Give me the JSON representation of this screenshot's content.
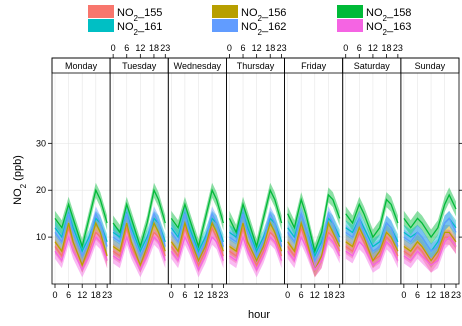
{
  "chart_data": {
    "type": "line",
    "ylabel": "NO2 (ppb)",
    "ylabel_parts": {
      "main": "NO",
      "sub": "2",
      "unit": " (ppb)"
    },
    "xlabel": "hour",
    "panels": [
      "Monday",
      "Tuesday",
      "Wednesday",
      "Thursday",
      "Friday",
      "Saturday",
      "Sunday"
    ],
    "x_ticks": [
      "0",
      "6",
      "12",
      "18",
      "23"
    ],
    "xlim": [
      0,
      23
    ],
    "y_ticks": [
      10,
      20,
      30
    ],
    "ylim": [
      0,
      45
    ],
    "grid": true,
    "legend_position": "top",
    "x": [
      0,
      3,
      6,
      8,
      12,
      15,
      18,
      20,
      23
    ],
    "series": [
      {
        "name": "NO2_155",
        "label_main": "NO",
        "label_sub": "2",
        "label_suffix": "_155",
        "color": "#f8766d",
        "values": [
          [
            8,
            6,
            12,
            9,
            4,
            7,
            11,
            10,
            5
          ],
          [
            7,
            6,
            12,
            8,
            4,
            7,
            11,
            10,
            6
          ],
          [
            8,
            6,
            12,
            9,
            4,
            7,
            12,
            10,
            6
          ],
          [
            7,
            6,
            12,
            8,
            4,
            7,
            11,
            10,
            6
          ],
          [
            8,
            6,
            12,
            9,
            3,
            5,
            11,
            10,
            7
          ],
          [
            8,
            7,
            11,
            9,
            5,
            6,
            10,
            9,
            6
          ],
          [
            7,
            6,
            8,
            7,
            4,
            6,
            10,
            10,
            8
          ]
        ]
      },
      {
        "name": "NO2_156",
        "label_main": "NO",
        "label_sub": "2",
        "label_suffix": "_156",
        "color": "#b79f00",
        "values": [
          [
            9,
            7,
            13,
            9,
            4,
            8,
            13,
            11,
            6
          ],
          [
            8,
            7,
            13,
            9,
            4,
            8,
            13,
            11,
            7
          ],
          [
            9,
            7,
            13,
            10,
            5,
            8,
            13,
            11,
            7
          ],
          [
            8,
            7,
            13,
            9,
            5,
            8,
            13,
            11,
            7
          ],
          [
            9,
            7,
            13,
            10,
            3,
            6,
            13,
            11,
            8
          ],
          [
            9,
            8,
            12,
            10,
            5,
            7,
            11,
            10,
            7
          ],
          [
            8,
            7,
            9,
            8,
            5,
            7,
            11,
            11,
            9
          ]
        ]
      },
      {
        "name": "NO2_158",
        "label_main": "NO",
        "label_sub": "2",
        "label_suffix": "_158",
        "color": "#00ba38",
        "values": [
          [
            14,
            12,
            17,
            14,
            8,
            14,
            20,
            18,
            13
          ],
          [
            13,
            11,
            17,
            14,
            8,
            13,
            20,
            18,
            13
          ],
          [
            14,
            12,
            17,
            14,
            8,
            14,
            20,
            18,
            13
          ],
          [
            14,
            11,
            17,
            14,
            8,
            14,
            20,
            18,
            13
          ],
          [
            15,
            12,
            18,
            15,
            7,
            11,
            19,
            18,
            14
          ],
          [
            15,
            13,
            17,
            15,
            10,
            12,
            18,
            17,
            13
          ],
          [
            14,
            12,
            14,
            13,
            10,
            12,
            17,
            19,
            16
          ]
        ]
      },
      {
        "name": "NO2_161",
        "label_main": "NO",
        "label_sub": "2",
        "label_suffix": "_161",
        "color": "#00bfc4",
        "values": [
          [
            12,
            10,
            15,
            12,
            7,
            10,
            14,
            13,
            9
          ],
          [
            11,
            10,
            15,
            12,
            7,
            10,
            14,
            13,
            9
          ],
          [
            12,
            10,
            15,
            12,
            7,
            10,
            14,
            13,
            9
          ],
          [
            11,
            10,
            15,
            12,
            7,
            10,
            14,
            13,
            9
          ],
          [
            12,
            10,
            15,
            12,
            6,
            9,
            14,
            13,
            10
          ],
          [
            12,
            11,
            14,
            12,
            8,
            9,
            13,
            12,
            9
          ],
          [
            11,
            10,
            11,
            10,
            7,
            9,
            13,
            14,
            12
          ]
        ]
      },
      {
        "name": "NO2_162",
        "label_main": "NO",
        "label_sub": "2",
        "label_suffix": "_162",
        "color": "#619cff",
        "values": [
          [
            11,
            9,
            15,
            11,
            6,
            9,
            15,
            13,
            8
          ],
          [
            10,
            9,
            15,
            11,
            6,
            9,
            15,
            13,
            8
          ],
          [
            11,
            9,
            15,
            11,
            6,
            9,
            15,
            13,
            8
          ],
          [
            10,
            9,
            15,
            11,
            6,
            9,
            15,
            13,
            8
          ],
          [
            11,
            9,
            15,
            12,
            5,
            8,
            15,
            13,
            9
          ],
          [
            11,
            10,
            14,
            11,
            7,
            8,
            13,
            12,
            8
          ],
          [
            10,
            9,
            11,
            10,
            7,
            8,
            13,
            14,
            11
          ]
        ]
      },
      {
        "name": "NO2_163",
        "label_main": "NO",
        "label_sub": "2",
        "label_suffix": "_163",
        "color": "#f564e3",
        "values": [
          [
            7,
            5,
            10,
            7,
            3,
            6,
            10,
            9,
            5
          ],
          [
            6,
            5,
            10,
            7,
            3,
            6,
            10,
            9,
            5
          ],
          [
            7,
            5,
            10,
            8,
            3,
            6,
            10,
            9,
            5
          ],
          [
            6,
            5,
            10,
            7,
            3,
            6,
            10,
            9,
            5
          ],
          [
            7,
            5,
            10,
            8,
            3,
            5,
            10,
            9,
            6
          ],
          [
            7,
            6,
            9,
            8,
            4,
            5,
            9,
            8,
            5
          ],
          [
            6,
            5,
            7,
            6,
            4,
            5,
            9,
            10,
            8
          ]
        ]
      }
    ]
  }
}
